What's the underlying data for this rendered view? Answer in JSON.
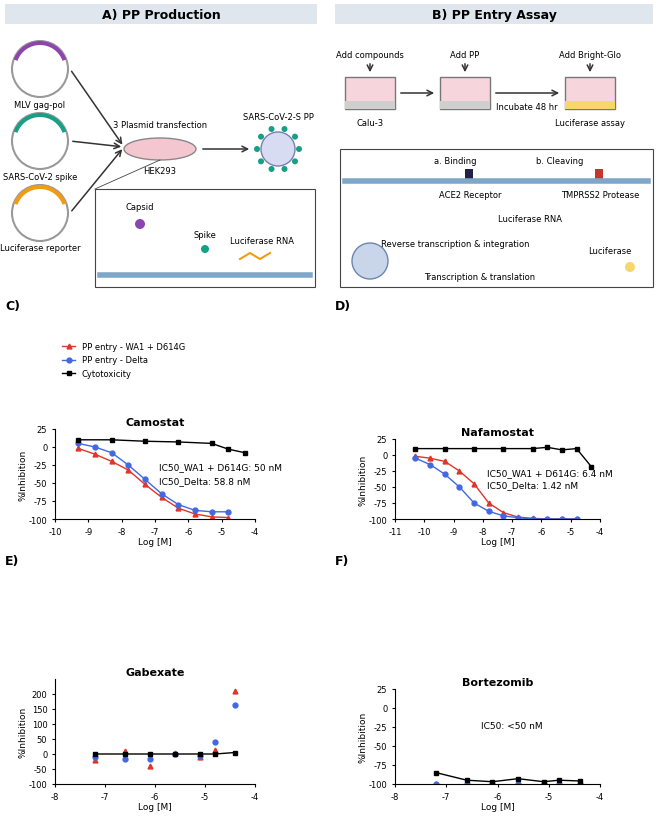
{
  "diagram_A": {
    "title": "A) PP Production",
    "plasmids": [
      "MLV gag-pol",
      "SARS-CoV-2 spike",
      "Luciferase reporter"
    ],
    "transfection": "3 Plasmid transfection",
    "cell_line": "HEK293",
    "product": "SARS-CoV-2-S PP",
    "inset": [
      "Capsid",
      "Spike",
      "Luciferase RNA"
    ]
  },
  "diagram_B": {
    "title": "B) PP Entry Assay",
    "steps": [
      "Add compounds",
      "Add PP",
      "Add Bright-Glo"
    ],
    "incubate": "Incubate 48 hr",
    "cell_line": "Calu-3",
    "readout": "Luciferase assay",
    "inset": {
      "binding": "a. Binding",
      "cleaving": "b. Cleaving",
      "receptor": "ACE2 Receptor",
      "protease": "TMPRSS2 Protease",
      "rna": "Luciferase RNA",
      "rt": "Reverse transcription & integration",
      "product": "Luciferase",
      "tt": "Transcription & translation"
    }
  },
  "chart_data": [
    {
      "type": "line",
      "label": "C)",
      "title": "Camostat",
      "x_label": "Log [M]",
      "y_label": "%Inhibition",
      "xlim": [
        -10,
        -4
      ],
      "xticks": [
        -10,
        -9,
        -8,
        -7,
        -6,
        -5,
        -4
      ],
      "ylim": [
        -100,
        25
      ],
      "yticks": [
        -100,
        -75,
        -50,
        -25,
        0,
        25
      ],
      "legend": "upper left",
      "annotations": [
        "IC50_WA1 + D614G: 50 nM",
        "IC50_Delta: 58.8 nM"
      ],
      "series": [
        {
          "name": "PP entry - WA1 + D614G",
          "color": "#e0352b",
          "marker": "triangle",
          "line_style": "solid",
          "x": [
            -9.3,
            -8.8,
            -8.3,
            -7.8,
            -7.3,
            -6.8,
            -6.3,
            -5.8,
            -5.3,
            -4.8
          ],
          "values": [
            -2,
            -10,
            -20,
            -32,
            -52,
            -70,
            -85,
            -93,
            -97,
            -98
          ]
        },
        {
          "name": "PP entry - Delta",
          "color": "#4169e1",
          "marker": "circle",
          "line_style": "solid",
          "x": [
            -9.3,
            -8.8,
            -8.3,
            -7.8,
            -7.3,
            -6.8,
            -6.3,
            -5.8,
            -5.3,
            -4.8
          ],
          "values": [
            5,
            0,
            -8,
            -25,
            -45,
            -65,
            -80,
            -88,
            -90,
            -90
          ]
        },
        {
          "name": "Cytotoxicity",
          "color": "#000000",
          "marker": "square",
          "line_style": "solid",
          "x": [
            -9.3,
            -8.3,
            -7.3,
            -6.3,
            -5.3,
            -4.8,
            -4.3
          ],
          "values": [
            10,
            10,
            8,
            7,
            5,
            -3,
            -8
          ]
        }
      ]
    },
    {
      "type": "line",
      "label": "D)",
      "title": "Nafamostat",
      "x_label": "Log [M]",
      "y_label": "%Inhibition",
      "xlim": [
        -11,
        -4
      ],
      "xticks": [
        -11,
        -10,
        -9,
        -8,
        -7,
        -6,
        -5,
        -4
      ],
      "ylim": [
        -100,
        25
      ],
      "yticks": [
        -100,
        -75,
        -50,
        -25,
        0,
        25
      ],
      "annotations": [
        "IC50_WA1 + D614G: 6.4 nM",
        "IC50_Delta: 1.42 nM"
      ],
      "series": [
        {
          "color": "#e0352b",
          "marker": "triangle",
          "line_style": "solid",
          "x": [
            -10.3,
            -9.8,
            -9.3,
            -8.8,
            -8.3,
            -7.8,
            -7.3,
            -6.8,
            -6.3,
            -5.8,
            -5.3,
            -4.8
          ],
          "values": [
            -2,
            -5,
            -10,
            -25,
            -45,
            -75,
            -90,
            -97,
            -99,
            -100,
            -100,
            -100
          ]
        },
        {
          "color": "#4169e1",
          "marker": "circle",
          "line_style": "solid",
          "x": [
            -10.3,
            -9.8,
            -9.3,
            -8.8,
            -8.3,
            -7.8,
            -7.3,
            -6.8,
            -6.3,
            -5.8,
            -5.3,
            -4.8
          ],
          "values": [
            -5,
            -15,
            -30,
            -50,
            -75,
            -88,
            -95,
            -98,
            -100,
            -100,
            -100,
            -100
          ]
        },
        {
          "color": "#000000",
          "marker": "square",
          "line_style": "solid",
          "x": [
            -10.3,
            -9.3,
            -8.3,
            -7.3,
            -6.3,
            -5.8,
            -5.3,
            -4.8,
            -4.3
          ],
          "values": [
            10,
            10,
            10,
            10,
            10,
            12,
            8,
            10,
            -18
          ]
        }
      ]
    },
    {
      "type": "line",
      "label": "E)",
      "title": "Gabexate",
      "x_label": "Log [M]",
      "y_label": "%Inhibition",
      "xlim": [
        -8,
        -4
      ],
      "xticks": [
        -8,
        -7,
        -6,
        -5,
        -4
      ],
      "ylim": [
        -100,
        250
      ],
      "yticks": [
        -100,
        -50,
        0,
        50,
        100,
        150,
        200
      ],
      "annotations": [],
      "series": [
        {
          "color": "#e0352b",
          "marker": "triangle",
          "line_style": "none",
          "x": [
            -7.2,
            -6.6,
            -6.1,
            -5.6,
            -5.1,
            -4.8,
            -4.4
          ],
          "values": [
            -20,
            10,
            -40,
            5,
            -10,
            15,
            210
          ]
        },
        {
          "color": "#4169e1",
          "marker": "circle",
          "line_style": "none",
          "x": [
            -7.2,
            -6.6,
            -6.1,
            -5.6,
            -5.1,
            -4.8,
            -4.4
          ],
          "values": [
            -10,
            -15,
            -15,
            0,
            -5,
            40,
            165
          ]
        },
        {
          "color": "#000000",
          "marker": "square",
          "line_style": "solid",
          "x": [
            -7.2,
            -6.6,
            -6.1,
            -5.6,
            -5.1,
            -4.8,
            -4.4
          ],
          "values": [
            0,
            0,
            0,
            0,
            0,
            0,
            5
          ]
        }
      ]
    },
    {
      "type": "line",
      "label": "F)",
      "title": "Bortezomib",
      "x_label": "Log [M]",
      "y_label": "%Inhibition",
      "xlim": [
        -8,
        -4
      ],
      "xticks": [
        -8,
        -7,
        -6,
        -5,
        -4
      ],
      "ylim": [
        -100,
        25
      ],
      "yticks": [
        -100,
        -75,
        -50,
        -25,
        0,
        25
      ],
      "annotations": [
        "IC50: <50 nM"
      ],
      "series": [
        {
          "color": "#e0352b",
          "marker": "triangle",
          "line_style": "none",
          "x": [
            -7.2,
            -6.6,
            -6.1,
            -5.6,
            -5.1,
            -4.8,
            -4.4
          ],
          "values": [
            -100,
            -100,
            -100,
            -100,
            -100,
            -100,
            -100
          ]
        },
        {
          "color": "#4169e1",
          "marker": "circle",
          "line_style": "none",
          "x": [
            -7.2,
            -6.6,
            -6.1,
            -5.6,
            -5.1,
            -4.8,
            -4.4
          ],
          "values": [
            -100,
            -100,
            -100,
            -100,
            -100,
            -100,
            -100
          ]
        },
        {
          "color": "#000000",
          "marker": "square",
          "line_style": "solid",
          "x": [
            -7.2,
            -6.6,
            -6.1,
            -5.6,
            -5.1,
            -4.8,
            -4.4
          ],
          "values": [
            -85,
            -95,
            -97,
            -93,
            -97,
            -95,
            -96
          ]
        }
      ]
    }
  ]
}
